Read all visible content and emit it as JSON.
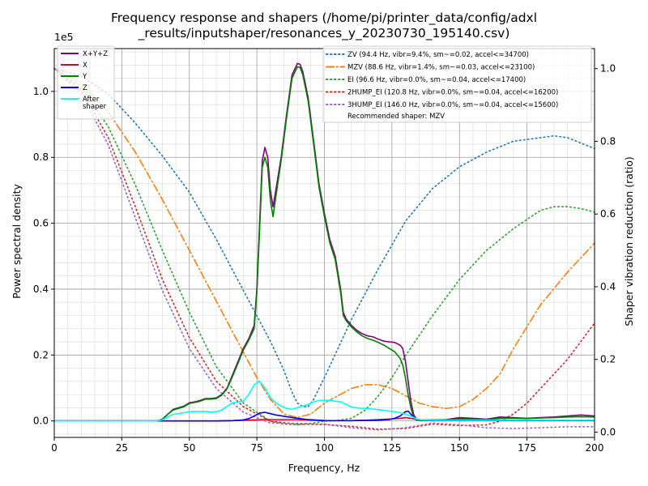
{
  "chart_data": {
    "type": "line",
    "title_line1": "Frequency response and shapers (/home/pi/printer_data/config/adxl",
    "title_line2": "_results/inputshaper/resonances_y_20230730_195140.csv)",
    "xlabel": "Frequency, Hz",
    "ylabel": "Power spectral density",
    "y2label": "Shaper vibration reduction (ratio)",
    "offset_label": "1e5",
    "xlim": [
      0,
      200
    ],
    "ylim": [
      -0.05,
      1.13
    ],
    "y2lim": [
      -0.0145,
      1.055
    ],
    "xticks": [
      "0",
      "25",
      "50",
      "75",
      "100",
      "125",
      "150",
      "175",
      "200"
    ],
    "yticks": [
      "0.0",
      "0.2",
      "0.4",
      "0.6",
      "0.8",
      "1.0"
    ],
    "y2ticks": [
      "0.0",
      "0.2",
      "0.4",
      "0.6",
      "0.8",
      "1.0"
    ],
    "grid": true,
    "legend1_placement": "upper-left",
    "legend2_placement": "upper-right",
    "recommended_text": "Recommended shaper: MZV",
    "psd_series": [
      {
        "name": "X+Y+Z",
        "color": "#800080",
        "x": [
          0,
          38,
          40,
          42,
          44,
          46,
          48,
          50,
          52,
          54,
          56,
          58,
          60,
          62,
          64,
          66,
          68,
          70,
          72,
          74,
          75,
          76,
          77,
          78,
          79,
          80,
          81,
          82,
          84,
          86,
          88,
          90,
          91,
          92,
          93,
          94,
          96,
          98,
          100,
          102,
          104,
          106,
          107,
          108,
          110,
          112,
          114,
          116,
          118,
          120,
          122,
          124,
          126,
          128,
          129,
          130,
          131,
          132,
          133,
          134,
          135,
          140,
          145,
          150,
          155,
          160,
          165,
          170,
          175,
          180,
          185,
          190,
          195,
          200
        ],
        "y": [
          0,
          0,
          0.005,
          0.02,
          0.035,
          0.04,
          0.045,
          0.055,
          0.058,
          0.062,
          0.068,
          0.068,
          0.07,
          0.08,
          0.1,
          0.14,
          0.18,
          0.22,
          0.25,
          0.29,
          0.4,
          0.6,
          0.79,
          0.83,
          0.8,
          0.7,
          0.65,
          0.7,
          0.8,
          0.93,
          1.05,
          1.085,
          1.082,
          1.06,
          1.02,
          0.98,
          0.85,
          0.72,
          0.63,
          0.55,
          0.5,
          0.4,
          0.33,
          0.31,
          0.29,
          0.275,
          0.265,
          0.258,
          0.255,
          0.248,
          0.242,
          0.24,
          0.238,
          0.23,
          0.22,
          0.18,
          0.12,
          0.06,
          0.02,
          0.005,
          0.003,
          0.003,
          0.004,
          0.01,
          0.008,
          0.005,
          0.012,
          0.01,
          0.008,
          0.01,
          0.012,
          0.015,
          0.018,
          0.015
        ]
      },
      {
        "name": "X",
        "color": "#e0002a",
        "x": [
          0,
          60,
          66,
          70,
          74,
          78,
          82,
          86,
          90,
          94,
          98,
          100,
          105,
          110,
          115,
          120,
          125,
          128,
          130,
          132,
          134,
          136,
          140,
          150,
          160,
          170,
          180,
          190,
          200
        ],
        "y": [
          0,
          0,
          0.001,
          0.002,
          0.003,
          0.004,
          0.004,
          0.004,
          0.004,
          0.003,
          0.002,
          0.001,
          0.001,
          0.001,
          0.002,
          0.004,
          0.006,
          0.008,
          0.01,
          0.008,
          0.004,
          0.001,
          0.001,
          0.002,
          0.003,
          0.002,
          0.002,
          0.002,
          0.002
        ]
      },
      {
        "name": "Y",
        "color": "#008000",
        "x": [
          0,
          38,
          40,
          42,
          44,
          46,
          48,
          50,
          52,
          54,
          56,
          58,
          60,
          62,
          64,
          66,
          68,
          70,
          72,
          74,
          75,
          76,
          77,
          78,
          79,
          80,
          81,
          82,
          84,
          86,
          88,
          90,
          91,
          92,
          93,
          94,
          96,
          98,
          100,
          102,
          104,
          106,
          107,
          108,
          110,
          112,
          114,
          116,
          118,
          120,
          122,
          124,
          126,
          128,
          129,
          130,
          131,
          132,
          133,
          134,
          135,
          140,
          145,
          150,
          155,
          160,
          165,
          170,
          175,
          180,
          185,
          190,
          195,
          200
        ],
        "y": [
          0,
          0,
          0.005,
          0.02,
          0.033,
          0.038,
          0.043,
          0.053,
          0.056,
          0.06,
          0.066,
          0.066,
          0.068,
          0.078,
          0.098,
          0.135,
          0.175,
          0.215,
          0.245,
          0.28,
          0.39,
          0.58,
          0.77,
          0.8,
          0.77,
          0.67,
          0.62,
          0.68,
          0.79,
          0.92,
          1.04,
          1.075,
          1.073,
          1.05,
          1.01,
          0.97,
          0.84,
          0.71,
          0.62,
          0.54,
          0.49,
          0.39,
          0.32,
          0.305,
          0.285,
          0.27,
          0.258,
          0.25,
          0.245,
          0.238,
          0.23,
          0.22,
          0.21,
          0.19,
          0.17,
          0.13,
          0.08,
          0.04,
          0.01,
          0.003,
          0.002,
          0.003,
          0.003,
          0.006,
          0.006,
          0.004,
          0.008,
          0.008,
          0.007,
          0.009,
          0.01,
          0.012,
          0.013,
          0.012
        ]
      },
      {
        "name": "Z",
        "color": "#0000ff",
        "x": [
          0,
          60,
          66,
          70,
          72,
          74,
          76,
          78,
          80,
          82,
          86,
          90,
          94,
          98,
          100,
          110,
          120,
          124,
          126,
          128,
          130,
          131,
          132,
          134,
          136,
          140,
          150,
          160,
          170,
          180,
          190,
          200
        ],
        "y": [
          0,
          0,
          0.001,
          0.003,
          0.007,
          0.015,
          0.024,
          0.026,
          0.022,
          0.018,
          0.013,
          0.008,
          0.004,
          0.002,
          0.001,
          0.001,
          0.002,
          0.004,
          0.008,
          0.015,
          0.028,
          0.03,
          0.02,
          0.005,
          0.002,
          0.001,
          0.001,
          0.001,
          0.001,
          0.001,
          0.001,
          0.001
        ]
      },
      {
        "name": "After\nshaper",
        "color": "#00ffff",
        "x": [
          0,
          38,
          40,
          42,
          44,
          46,
          48,
          50,
          52,
          54,
          56,
          58,
          60,
          62,
          64,
          66,
          68,
          70,
          72,
          74,
          76,
          78,
          80,
          82,
          84,
          86,
          88,
          90,
          92,
          94,
          96,
          98,
          100,
          102,
          104,
          106,
          108,
          110,
          112,
          114,
          116,
          118,
          120,
          122,
          124,
          126,
          128,
          130,
          132,
          134,
          136,
          140,
          150,
          160,
          170,
          180,
          190,
          200
        ],
        "y": [
          0,
          0,
          0.003,
          0.012,
          0.02,
          0.022,
          0.025,
          0.028,
          0.029,
          0.029,
          0.029,
          0.027,
          0.028,
          0.033,
          0.045,
          0.055,
          0.058,
          0.06,
          0.08,
          0.11,
          0.12,
          0.1,
          0.07,
          0.055,
          0.045,
          0.038,
          0.035,
          0.04,
          0.045,
          0.05,
          0.058,
          0.062,
          0.063,
          0.062,
          0.06,
          0.058,
          0.05,
          0.042,
          0.04,
          0.038,
          0.037,
          0.036,
          0.034,
          0.032,
          0.03,
          0.028,
          0.025,
          0.02,
          0.015,
          0.006,
          0.003,
          0.002,
          0.002,
          0.002,
          0.002,
          0.002,
          0.002,
          0.002
        ]
      }
    ],
    "shaper_series": [
      {
        "name": "ZV (94.4 Hz, vibr=9.4%, sm~=0.02, accel<=34700)",
        "color": "#1f77b4",
        "dash": "dot",
        "x": [
          0,
          10,
          20,
          30,
          40,
          50,
          60,
          70,
          80,
          85,
          88,
          90,
          92,
          94,
          96,
          98,
          100,
          105,
          110,
          120,
          130,
          140,
          150,
          160,
          170,
          180,
          185,
          190,
          200
        ],
        "y": [
          1.0,
          0.98,
          0.93,
          0.85,
          0.76,
          0.66,
          0.53,
          0.39,
          0.25,
          0.17,
          0.11,
          0.08,
          0.07,
          0.07,
          0.09,
          0.12,
          0.15,
          0.23,
          0.31,
          0.45,
          0.58,
          0.67,
          0.73,
          0.77,
          0.8,
          0.81,
          0.815,
          0.81,
          0.78
        ]
      },
      {
        "name": "MZV (88.6 Hz, vibr=1.4%, sm~=0.03, accel<=23100)",
        "color": "#ff7f0e",
        "dash": "dashdot",
        "x": [
          0,
          10,
          20,
          30,
          40,
          50,
          60,
          70,
          75,
          80,
          85,
          90,
          95,
          100,
          105,
          110,
          115,
          120,
          125,
          130,
          135,
          140,
          145,
          150,
          155,
          160,
          165,
          170,
          180,
          190,
          200
        ],
        "y": [
          1.0,
          0.96,
          0.88,
          0.77,
          0.64,
          0.5,
          0.36,
          0.22,
          0.15,
          0.09,
          0.05,
          0.04,
          0.05,
          0.08,
          0.1,
          0.12,
          0.13,
          0.13,
          0.12,
          0.1,
          0.08,
          0.07,
          0.065,
          0.07,
          0.09,
          0.12,
          0.16,
          0.23,
          0.35,
          0.44,
          0.52
        ]
      },
      {
        "name": "EI (96.6 Hz, vibr=0.0%, sm~=0.04, accel<=17400)",
        "color": "#2ca02c",
        "dash": "dot",
        "x": [
          0,
          10,
          20,
          30,
          40,
          50,
          60,
          70,
          80,
          85,
          90,
          95,
          100,
          105,
          110,
          115,
          120,
          125,
          130,
          140,
          150,
          160,
          170,
          180,
          185,
          190,
          195,
          200
        ],
        "y": [
          1.0,
          0.95,
          0.84,
          0.68,
          0.5,
          0.33,
          0.18,
          0.08,
          0.03,
          0.022,
          0.02,
          0.024,
          0.03,
          0.032,
          0.038,
          0.06,
          0.1,
          0.15,
          0.21,
          0.32,
          0.42,
          0.5,
          0.56,
          0.61,
          0.62,
          0.62,
          0.615,
          0.605
        ]
      },
      {
        "name": "2HUMP_EI (120.8 Hz, vibr=0.0%, sm~=0.04, accel<=16200)",
        "color": "#d62728",
        "dash": "dot",
        "x": [
          0,
          10,
          20,
          30,
          40,
          50,
          60,
          70,
          80,
          90,
          100,
          110,
          120,
          130,
          140,
          150,
          160,
          165,
          170,
          175,
          180,
          185,
          190,
          195,
          200
        ],
        "y": [
          1.0,
          0.94,
          0.81,
          0.62,
          0.42,
          0.26,
          0.14,
          0.07,
          0.03,
          0.022,
          0.021,
          0.016,
          0.008,
          0.01,
          0.022,
          0.018,
          0.02,
          0.03,
          0.05,
          0.08,
          0.12,
          0.16,
          0.2,
          0.25,
          0.3
        ]
      },
      {
        "name": "3HUMP_EI (146.0 Hz, vibr=0.0%, sm~=0.04, accel<=15600)",
        "color": "#9467bd",
        "dash": "dot",
        "x": [
          0,
          10,
          20,
          30,
          40,
          50,
          60,
          70,
          80,
          90,
          100,
          110,
          120,
          130,
          140,
          150,
          160,
          170,
          180,
          190,
          200
        ],
        "y": [
          1.0,
          0.93,
          0.79,
          0.59,
          0.39,
          0.23,
          0.12,
          0.055,
          0.025,
          0.024,
          0.022,
          0.012,
          0.006,
          0.012,
          0.025,
          0.02,
          0.012,
          0.01,
          0.012,
          0.015,
          0.015
        ]
      }
    ]
  }
}
